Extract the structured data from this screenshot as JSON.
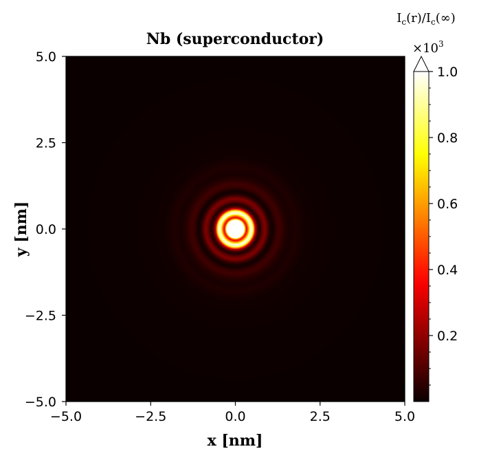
{
  "chart_data": {
    "type": "heatmap",
    "title": "Nb (superconductor)",
    "xlabel": "x [nm]",
    "ylabel": "y [nm]",
    "xlim": [
      -5.0,
      5.0
    ],
    "ylim": [
      -5.0,
      5.0
    ],
    "xticks": [
      -5.0,
      -2.5,
      0.0,
      2.5,
      5.0
    ],
    "yticks": [
      -5.0,
      -2.5,
      0.0,
      2.5,
      5.0
    ],
    "xtick_labels": [
      "−5.0",
      "−2.5",
      "0.0",
      "2.5",
      "5.0"
    ],
    "ytick_labels": [
      "−5.0",
      "−2.5",
      "0.0",
      "2.5",
      "5.0"
    ],
    "colormap": "hot",
    "colorbar": {
      "label_prefix": "I",
      "label_sub1": "c",
      "label_mid": "(r)/I",
      "label_sub2": "c",
      "label_suffix": "(∞)",
      "multiplier_base": "×10",
      "multiplier_exp": "3",
      "range": [
        0.0,
        1.0
      ],
      "ticks": [
        0.2,
        0.4,
        0.6,
        0.8,
        1.0
      ],
      "tick_labels": [
        "0.2",
        "0.4",
        "0.6",
        "0.8",
        "1.0"
      ],
      "extend": "max"
    },
    "radial_profile": {
      "unit": "nm",
      "note_values_in_colorbar_units": true,
      "r": [
        0.0,
        0.15,
        0.25,
        0.32,
        0.38,
        0.45,
        0.52,
        0.58,
        0.65,
        0.72,
        0.8,
        0.88,
        0.95,
        1.02,
        1.1,
        1.2,
        1.3,
        1.45,
        1.6,
        1.8,
        2.1,
        2.6,
        5.0
      ],
      "value": [
        1.2,
        1.2,
        1.1,
        0.3,
        0.55,
        1.0,
        0.85,
        0.3,
        0.08,
        0.03,
        0.13,
        0.18,
        0.1,
        0.03,
        0.01,
        0.06,
        0.08,
        0.04,
        0.02,
        0.03,
        0.01,
        0.005,
        0.0
      ]
    }
  }
}
